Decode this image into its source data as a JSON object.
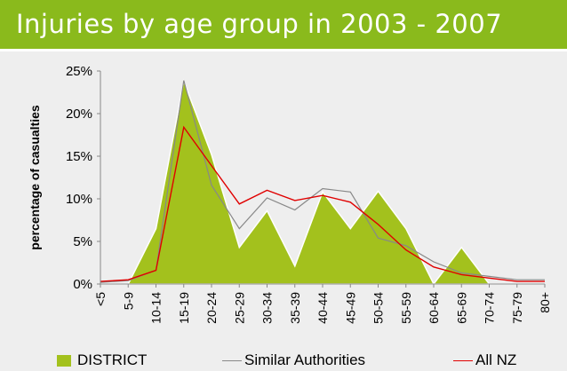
{
  "title": "Injuries by age group in 2003 - 2007",
  "colors": {
    "header": "#8aba1c",
    "district": "#a3c11d",
    "similar": "#888888",
    "allnz": "#e00000",
    "background": "#eeeeee"
  },
  "chart_data": {
    "type": "area",
    "ylabel": "percentage of casualties",
    "xlabel": "",
    "categories": [
      "<5",
      "5-9",
      "10-14",
      "15-19",
      "20-24",
      "25-29",
      "30-34",
      "35-39",
      "40-44",
      "45-49",
      "50-54",
      "55-59",
      "60-64",
      "65-69",
      "70-74",
      "75-79",
      "80+"
    ],
    "y_ticks": [
      "0%",
      "5%",
      "10%",
      "15%",
      "20%",
      "25%"
    ],
    "ylim": [
      0,
      25
    ],
    "grid": false,
    "legend_position": "bottom",
    "series": [
      {
        "name": "DISTRICT",
        "style": "area",
        "values": [
          0,
          0,
          6.5,
          23.8,
          15.2,
          4.3,
          8.6,
          2.1,
          10.8,
          6.5,
          10.9,
          6.5,
          0,
          4.3,
          0,
          0,
          0
        ]
      },
      {
        "name": "Similar Authorities",
        "style": "line",
        "values": [
          0.2,
          0.4,
          1.6,
          23.9,
          11.6,
          6.5,
          10.1,
          8.7,
          11.2,
          10.8,
          5.4,
          4.5,
          2.6,
          1.3,
          0.9,
          0.5,
          0.5
        ]
      },
      {
        "name": "All NZ",
        "style": "line",
        "values": [
          0.3,
          0.5,
          1.6,
          18.4,
          13.9,
          9.4,
          11.0,
          9.8,
          10.4,
          9.6,
          7.0,
          4.0,
          2.0,
          1.1,
          0.7,
          0.3,
          0.3
        ]
      }
    ]
  }
}
